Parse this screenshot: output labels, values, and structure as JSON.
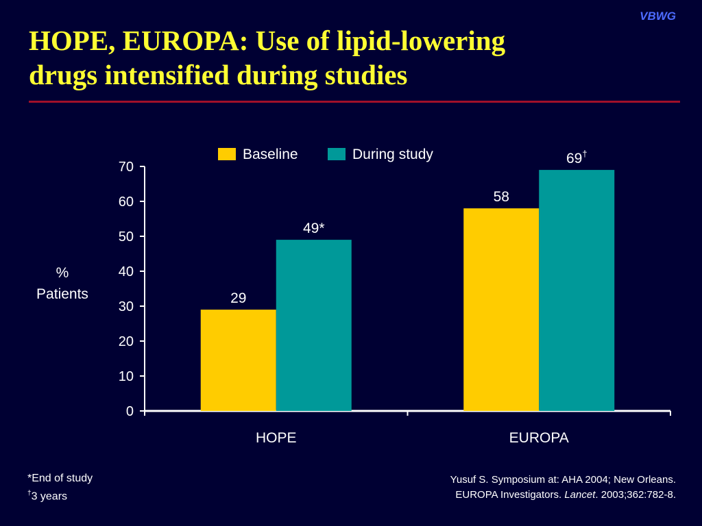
{
  "brand": "VBWG",
  "title_lines": [
    "HOPE, EUROPA: Use of lipid-lowering",
    "drugs intensified during studies"
  ],
  "colors": {
    "background": "#000033",
    "title": "#ffff33",
    "rule": "#a0102a",
    "baseline": "#ffcc00",
    "during_study": "#009999"
  },
  "chart_data": {
    "type": "bar",
    "categories": [
      "HOPE",
      "EUROPA"
    ],
    "series": [
      {
        "name": "Baseline",
        "values": [
          29,
          58
        ],
        "labels": [
          "29",
          "58"
        ],
        "label_sup": [
          "",
          ""
        ],
        "color": "#ffcc00"
      },
      {
        "name": "During study",
        "values": [
          49,
          69
        ],
        "labels": [
          "49*",
          "69"
        ],
        "label_sup": [
          "",
          "†"
        ],
        "color": "#009999"
      }
    ],
    "ylabel_lines": [
      "%",
      "Patients"
    ],
    "ylim": [
      0,
      70
    ],
    "yticks": [
      "0",
      "10",
      "20",
      "30",
      "40",
      "50",
      "60",
      "70"
    ],
    "grid": false,
    "legend_position": "top"
  },
  "footnotes": [
    {
      "mark": "",
      "text": "*End of study"
    },
    {
      "mark": "†",
      "text": "3 years"
    }
  ],
  "source": {
    "line1": "Yusuf S. Symposium at: AHA 2004; New Orleans.",
    "line2_prefix": "EUROPA Investigators. ",
    "line2_journal": "Lancet",
    "line2_suffix": ". 2003;362:782-8."
  }
}
